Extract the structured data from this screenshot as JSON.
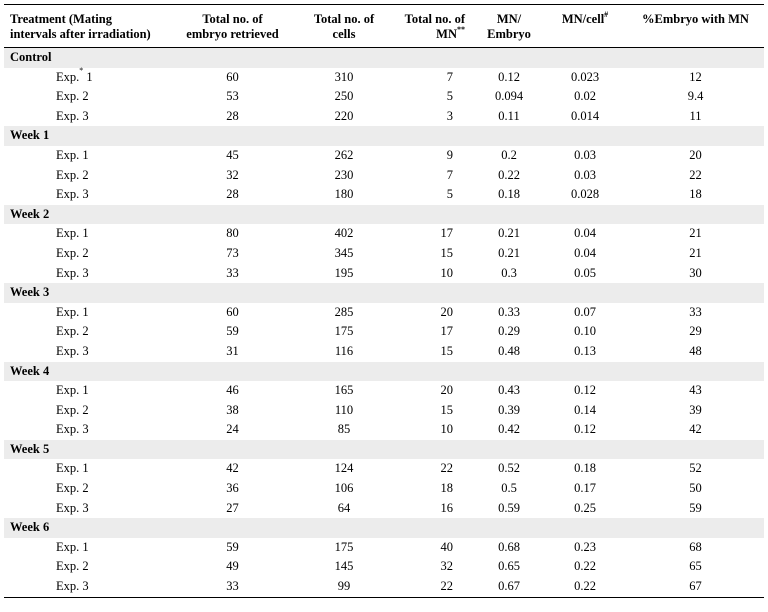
{
  "columns": {
    "treatment": [
      "Treatment (Mating",
      "intervals after irradiation)"
    ],
    "embryo": [
      "Total no. of",
      "embryo retrieved"
    ],
    "cells": [
      "Total no. of",
      "cells"
    ],
    "mn_total": [
      "Total no. of",
      "MN"
    ],
    "mn_total_sup": "**",
    "mn_embryo": [
      "MN/",
      "Embryo"
    ],
    "mn_cell": "MN/cell",
    "mn_cell_sup": "#",
    "pct": "%Embryo with MN"
  },
  "groups": [
    {
      "label": "Control",
      "rows": [
        {
          "exp": "Exp.",
          "sup": "*",
          "num": "1",
          "embryo": "60",
          "cells": "310",
          "mn": "7",
          "mn_embryo": "0.12",
          "mn_cell": "0.023",
          "pct": "12"
        },
        {
          "exp": "Exp.",
          "num": "2",
          "embryo": "53",
          "cells": "250",
          "mn": "5",
          "mn_embryo": "0.094",
          "mn_cell": "0.02",
          "pct": "9.4"
        },
        {
          "exp": "Exp.",
          "num": "3",
          "embryo": "28",
          "cells": "220",
          "mn": "3",
          "mn_embryo": "0.11",
          "mn_cell": "0.014",
          "pct": "11"
        }
      ]
    },
    {
      "label": "Week 1",
      "rows": [
        {
          "exp": "Exp.",
          "num": "1",
          "embryo": "45",
          "cells": "262",
          "mn": "9",
          "mn_embryo": "0.2",
          "mn_cell": "0.03",
          "pct": "20"
        },
        {
          "exp": "Exp.",
          "num": "2",
          "embryo": "32",
          "cells": "230",
          "mn": "7",
          "mn_embryo": "0.22",
          "mn_cell": "0.03",
          "pct": "22"
        },
        {
          "exp": "Exp.",
          "num": "3",
          "embryo": "28",
          "cells": "180",
          "mn": "5",
          "mn_embryo": "0.18",
          "mn_cell": "0.028",
          "pct": "18"
        }
      ]
    },
    {
      "label": "Week 2",
      "rows": [
        {
          "exp": "Exp.",
          "num": "1",
          "embryo": "80",
          "cells": "402",
          "mn": "17",
          "mn_embryo": "0.21",
          "mn_cell": "0.04",
          "pct": "21"
        },
        {
          "exp": "Exp.",
          "num": "2",
          "embryo": "73",
          "cells": "345",
          "mn": "15",
          "mn_embryo": "0.21",
          "mn_cell": "0.04",
          "pct": "21"
        },
        {
          "exp": "Exp.",
          "num": "3",
          "embryo": "33",
          "cells": "195",
          "mn": "10",
          "mn_embryo": "0.3",
          "mn_cell": "0.05",
          "pct": "30"
        }
      ]
    },
    {
      "label": "Week 3",
      "rows": [
        {
          "exp": "Exp.",
          "num": "1",
          "embryo": "60",
          "cells": "285",
          "mn": "20",
          "mn_embryo": "0.33",
          "mn_cell": "0.07",
          "pct": "33"
        },
        {
          "exp": "Exp.",
          "num": "2",
          "embryo": "59",
          "cells": "175",
          "mn": "17",
          "mn_embryo": "0.29",
          "mn_cell": "0.10",
          "pct": "29"
        },
        {
          "exp": "Exp.",
          "num": "3",
          "embryo": "31",
          "cells": "116",
          "mn": "15",
          "mn_embryo": "0.48",
          "mn_cell": "0.13",
          "pct": "48"
        }
      ]
    },
    {
      "label": "Week 4",
      "rows": [
        {
          "exp": "Exp.",
          "num": "1",
          "embryo": "46",
          "cells": "165",
          "mn": "20",
          "mn_embryo": "0.43",
          "mn_cell": "0.12",
          "pct": "43"
        },
        {
          "exp": "Exp.",
          "num": "2",
          "embryo": "38",
          "cells": "110",
          "mn": "15",
          "mn_embryo": "0.39",
          "mn_cell": "0.14",
          "pct": "39"
        },
        {
          "exp": "Exp.",
          "num": "3",
          "embryo": "24",
          "cells": "85",
          "mn": "10",
          "mn_embryo": "0.42",
          "mn_cell": "0.12",
          "pct": "42"
        }
      ]
    },
    {
      "label": "Week 5",
      "rows": [
        {
          "exp": "Exp.",
          "num": "1",
          "embryo": "42",
          "cells": "124",
          "mn": "22",
          "mn_embryo": "0.52",
          "mn_cell": "0.18",
          "pct": "52"
        },
        {
          "exp": "Exp.",
          "num": "2",
          "embryo": "36",
          "cells": "106",
          "mn": "18",
          "mn_embryo": "0.5",
          "mn_cell": "0.17",
          "pct": "50"
        },
        {
          "exp": "Exp.",
          "num": "3",
          "embryo": "27",
          "cells": "64",
          "mn": "16",
          "mn_embryo": "0.59",
          "mn_cell": "0.25",
          "pct": "59"
        }
      ]
    },
    {
      "label": "Week 6",
      "rows": [
        {
          "exp": "Exp.",
          "num": "1",
          "embryo": "59",
          "cells": "175",
          "mn": "40",
          "mn_embryo": "0.68",
          "mn_cell": "0.23",
          "pct": "68"
        },
        {
          "exp": "Exp.",
          "num": "2",
          "embryo": "49",
          "cells": "145",
          "mn": "32",
          "mn_embryo": "0.65",
          "mn_cell": "0.22",
          "pct": "65"
        },
        {
          "exp": "Exp.",
          "num": "3",
          "embryo": "33",
          "cells": "99",
          "mn": "22",
          "mn_embryo": "0.67",
          "mn_cell": "0.22",
          "pct": "67"
        }
      ]
    }
  ]
}
